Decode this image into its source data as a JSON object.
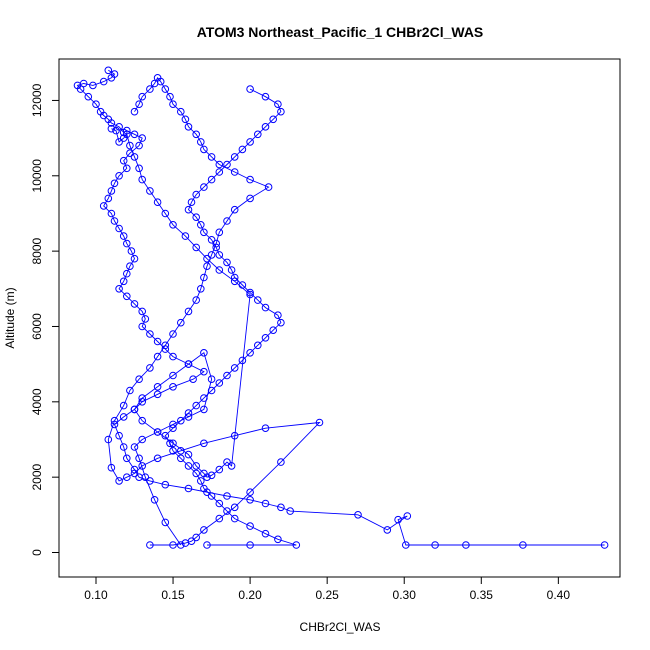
{
  "chart_data": {
    "type": "line",
    "title": "ATOM3 Northeast_Pacific_1 CHBr2Cl_WAS",
    "xlabel": "CHBr2Cl_WAS",
    "ylabel": "Altitude (m)",
    "xlim": [
      0.076,
      0.44
    ],
    "ylim": [
      -650,
      13100
    ],
    "x_ticks": [
      0.1,
      0.15,
      0.2,
      0.25,
      0.3,
      0.35,
      0.4
    ],
    "x_tick_labels": [
      "0.10",
      "0.15",
      "0.20",
      "0.25",
      "0.30",
      "0.35",
      "0.40"
    ],
    "y_ticks": [
      0,
      2000,
      4000,
      6000,
      8000,
      10000,
      12000
    ],
    "y_tick_labels": [
      "0",
      "2000",
      "4000",
      "6000",
      "8000",
      "10000",
      "12000"
    ],
    "grid": false,
    "legend": "none",
    "colors": {
      "series": "#0000ff"
    },
    "series": [
      {
        "x": [
          0.43,
          0.377,
          0.34,
          0.32,
          0.301,
          0.296,
          0.302,
          0.289,
          0.27,
          0.226,
          0.22,
          0.21,
          0.2,
          0.185,
          0.172,
          0.16,
          0.145,
          0.135,
          0.128,
          0.125,
          0.12,
          0.118,
          0.115,
          0.112,
          0.118,
          0.125,
          0.13,
          0.14,
          0.15,
          0.163,
          0.17,
          0.16,
          0.15,
          0.145,
          0.14,
          0.135,
          0.13,
          0.132,
          0.13,
          0.125,
          0.12,
          0.115,
          0.118,
          0.12,
          0.122,
          0.125,
          0.123,
          0.12,
          0.118,
          0.115,
          0.112,
          0.11,
          0.105,
          0.108,
          0.11,
          0.112,
          0.115,
          0.12,
          0.118,
          0.122,
          0.128,
          0.13,
          0.125,
          0.12,
          0.118,
          0.115,
          0.11,
          0.108,
          0.105,
          0.103,
          0.1,
          0.095,
          0.09,
          0.088,
          0.092,
          0.098,
          0.105,
          0.11,
          0.112,
          0.108
        ],
        "y": [
          200,
          200,
          200,
          200,
          200,
          870,
          970,
          600,
          1000,
          1100,
          1200,
          1300,
          1400,
          1500,
          1600,
          1700,
          1800,
          1900,
          2000,
          2200,
          2500,
          2800,
          3100,
          3400,
          3600,
          3800,
          4000,
          4200,
          4400,
          4600,
          4800,
          5000,
          5200,
          5400,
          5600,
          5800,
          6000,
          6200,
          6400,
          6600,
          6800,
          7000,
          7200,
          7400,
          7600,
          7800,
          8000,
          8200,
          8400,
          8600,
          8800,
          9000,
          9200,
          9400,
          9600,
          9800,
          10000,
          10200,
          10400,
          10600,
          10800,
          11000,
          11100,
          11200,
          11150,
          11300,
          11400,
          11500,
          11600,
          11700,
          11900,
          12100,
          12300,
          12400,
          12450,
          12400,
          12500,
          12600,
          12700,
          12800
        ]
      },
      {
        "x": [
          0.172,
          0.2,
          0.23,
          0.218,
          0.21,
          0.2,
          0.19,
          0.185,
          0.18,
          0.175,
          0.17,
          0.168,
          0.165,
          0.16,
          0.155,
          0.15,
          0.148,
          0.145,
          0.15,
          0.155,
          0.16,
          0.165,
          0.17,
          0.175,
          0.18,
          0.185,
          0.19,
          0.195,
          0.2,
          0.205,
          0.21,
          0.215,
          0.22,
          0.218,
          0.21,
          0.205,
          0.2,
          0.195,
          0.19,
          0.188,
          0.185,
          0.18,
          0.178,
          0.175,
          0.17,
          0.168,
          0.165,
          0.16,
          0.162,
          0.165,
          0.17,
          0.175,
          0.18,
          0.185,
          0.19,
          0.195,
          0.2,
          0.205,
          0.21,
          0.215,
          0.22,
          0.218,
          0.21,
          0.2
        ],
        "y": [
          200,
          200,
          200,
          350,
          500,
          700,
          900,
          1100,
          1300,
          1500,
          1700,
          1900,
          2100,
          2300,
          2500,
          2700,
          2900,
          3100,
          3300,
          3500,
          3700,
          3900,
          4100,
          4300,
          4500,
          4700,
          4900,
          5100,
          5300,
          5500,
          5700,
          5900,
          6100,
          6300,
          6500,
          6700,
          6900,
          7100,
          7300,
          7500,
          7700,
          7900,
          8100,
          8300,
          8500,
          8700,
          8900,
          9100,
          9300,
          9500,
          9700,
          9900,
          10100,
          10300,
          10500,
          10700,
          10900,
          11100,
          11300,
          11500,
          11700,
          11900,
          12100,
          12300
        ]
      },
      {
        "x": [
          0.135,
          0.15,
          0.158,
          0.162,
          0.165,
          0.17,
          0.18,
          0.19,
          0.2,
          0.22,
          0.245,
          0.21,
          0.19,
          0.17,
          0.155,
          0.14,
          0.13,
          0.125,
          0.12,
          0.115,
          0.11,
          0.108,
          0.112,
          0.118,
          0.122,
          0.128,
          0.135,
          0.14,
          0.145,
          0.15,
          0.155,
          0.16,
          0.165,
          0.168,
          0.17,
          0.172,
          0.175,
          0.178,
          0.18,
          0.185,
          0.19,
          0.2,
          0.212,
          0.2,
          0.19,
          0.18,
          0.175,
          0.17,
          0.168,
          0.165,
          0.16,
          0.158,
          0.155,
          0.15,
          0.148,
          0.145,
          0.142,
          0.14,
          0.138,
          0.135,
          0.13,
          0.128,
          0.125
        ],
        "y": [
          200,
          200,
          250,
          300,
          400,
          600,
          900,
          1200,
          1600,
          2400,
          3450,
          3300,
          3100,
          2900,
          2700,
          2500,
          2300,
          2100,
          2000,
          1900,
          2250,
          3000,
          3500,
          3900,
          4300,
          4600,
          4900,
          5200,
          5500,
          5800,
          6100,
          6400,
          6700,
          7000,
          7300,
          7600,
          7900,
          8200,
          8500,
          8800,
          9100,
          9400,
          9700,
          9900,
          10100,
          10300,
          10500,
          10700,
          10900,
          11100,
          11300,
          11500,
          11700,
          11900,
          12100,
          12300,
          12500,
          12600,
          12450,
          12300,
          12100,
          11900,
          11700
        ]
      },
      {
        "x": [
          0.155,
          0.145,
          0.138,
          0.132,
          0.128,
          0.125,
          0.13,
          0.14,
          0.15,
          0.16,
          0.17,
          0.175,
          0.17,
          0.16,
          0.15,
          0.14,
          0.13,
          0.125,
          0.13,
          0.14,
          0.15,
          0.16,
          0.165,
          0.17,
          0.172,
          0.175,
          0.18,
          0.185,
          0.188,
          0.2,
          0.19,
          0.18,
          0.172,
          0.165,
          0.158,
          0.15,
          0.145,
          0.14,
          0.135,
          0.13,
          0.128,
          0.125,
          0.122,
          0.12,
          0.118,
          0.115,
          0.113,
          0.11
        ],
        "y": [
          200,
          800,
          1400,
          2000,
          2500,
          2800,
          3000,
          3200,
          3400,
          3600,
          3800,
          4600,
          5300,
          5000,
          4700,
          4400,
          4100,
          3800,
          3500,
          3200,
          2900,
          2600,
          2300,
          2100,
          2000,
          2050,
          2200,
          2400,
          2300,
          6850,
          7200,
          7500,
          7800,
          8100,
          8400,
          8700,
          9000,
          9300,
          9600,
          9900,
          10200,
          10500,
          10800,
          11100,
          11000,
          10900,
          11200,
          11250
        ]
      }
    ]
  }
}
